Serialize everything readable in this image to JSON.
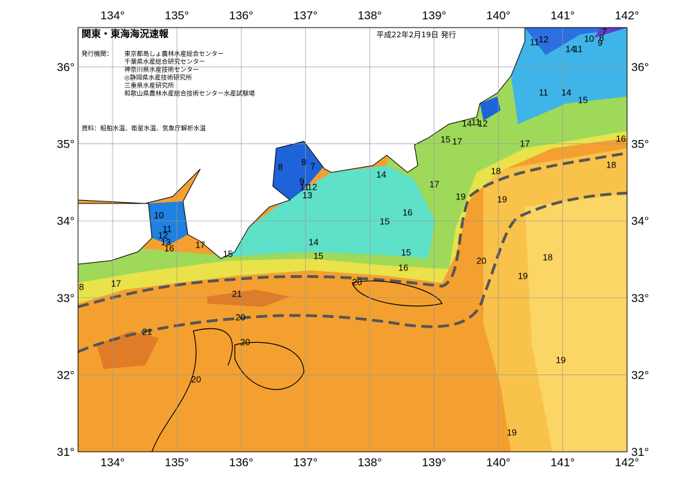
{
  "header": {
    "title": "関東・東海海況速報",
    "date": "平成22年2月19日 発行"
  },
  "issuers": {
    "label": "発行機関：",
    "lines": [
      "東京都島しょ農林水産総合センター",
      "千葉県水産総合研究センター",
      "神奈川県水産技術センター",
      "◎静岡県水産技術研究所",
      "三重県水産研究所",
      "和歌山県農林水産総合技術センター水産試験場"
    ]
  },
  "source": "資料：船舶水温、衛星水温、気象庁解析水温",
  "longitudes": [
    "134°",
    "135°",
    "136°",
    "137°",
    "138°",
    "139°",
    "140°",
    "141°",
    "142°"
  ],
  "latitudes": [
    "36°",
    "35°",
    "34°",
    "33°",
    "32°",
    "31°"
  ],
  "contour_labels": [
    "8",
    "17",
    "15",
    "17",
    "10",
    "11",
    "12",
    "13",
    "16",
    "8",
    "8",
    "7",
    "9",
    "11",
    "12",
    "13",
    "14",
    "16",
    "15",
    "14",
    "15",
    "15",
    "16",
    "20",
    "21",
    "20",
    "21",
    "20",
    "20",
    "17",
    "19",
    "15",
    "17",
    "14",
    "11",
    "12",
    "18",
    "19",
    "20",
    "19",
    "18",
    "19",
    "19",
    "17",
    "18",
    "16",
    "15",
    "14",
    "11",
    "11",
    "12",
    "14",
    "11",
    "10",
    "8",
    "7",
    "9"
  ]
}
